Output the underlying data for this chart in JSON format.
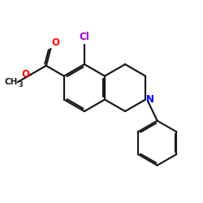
{
  "bg_color": "#ffffff",
  "bond_color": "#1a1a1a",
  "bond_width": 1.6,
  "atom_colors": {
    "O": "#ff0000",
    "N": "#0000ff",
    "Cl": "#9900cc",
    "C": "#1a1a1a"
  },
  "xlim": [
    0,
    10
  ],
  "ylim": [
    0,
    10
  ],
  "figsize": [
    2.5,
    2.5
  ],
  "dpi": 100
}
